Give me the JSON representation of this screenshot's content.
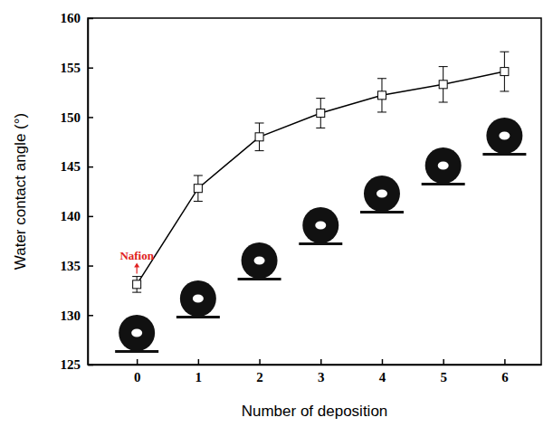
{
  "chart_data": {
    "type": "line",
    "x_label": "Number of deposition",
    "y_label": "Water contact angle (°)",
    "x": [
      0,
      1,
      2,
      3,
      4,
      5,
      6
    ],
    "series": [
      {
        "color": "#000000",
        "marker": "square",
        "values": [
          133.1,
          142.8,
          148.0,
          150.4,
          152.2,
          153.3,
          154.6
        ],
        "errors": [
          0.8,
          1.3,
          1.4,
          1.5,
          1.7,
          1.8,
          2.0
        ]
      }
    ],
    "xlim": [
      -0.8,
      6.6
    ],
    "xticks": [
      0,
      1,
      2,
      3,
      4,
      5,
      6
    ],
    "ylim": [
      125,
      160
    ],
    "yticks": [
      125,
      130,
      135,
      140,
      145,
      150,
      155,
      160
    ],
    "grid": false,
    "annotations": [
      {
        "text": "Nafion",
        "x": 0,
        "color": "#e02020"
      }
    ]
  }
}
